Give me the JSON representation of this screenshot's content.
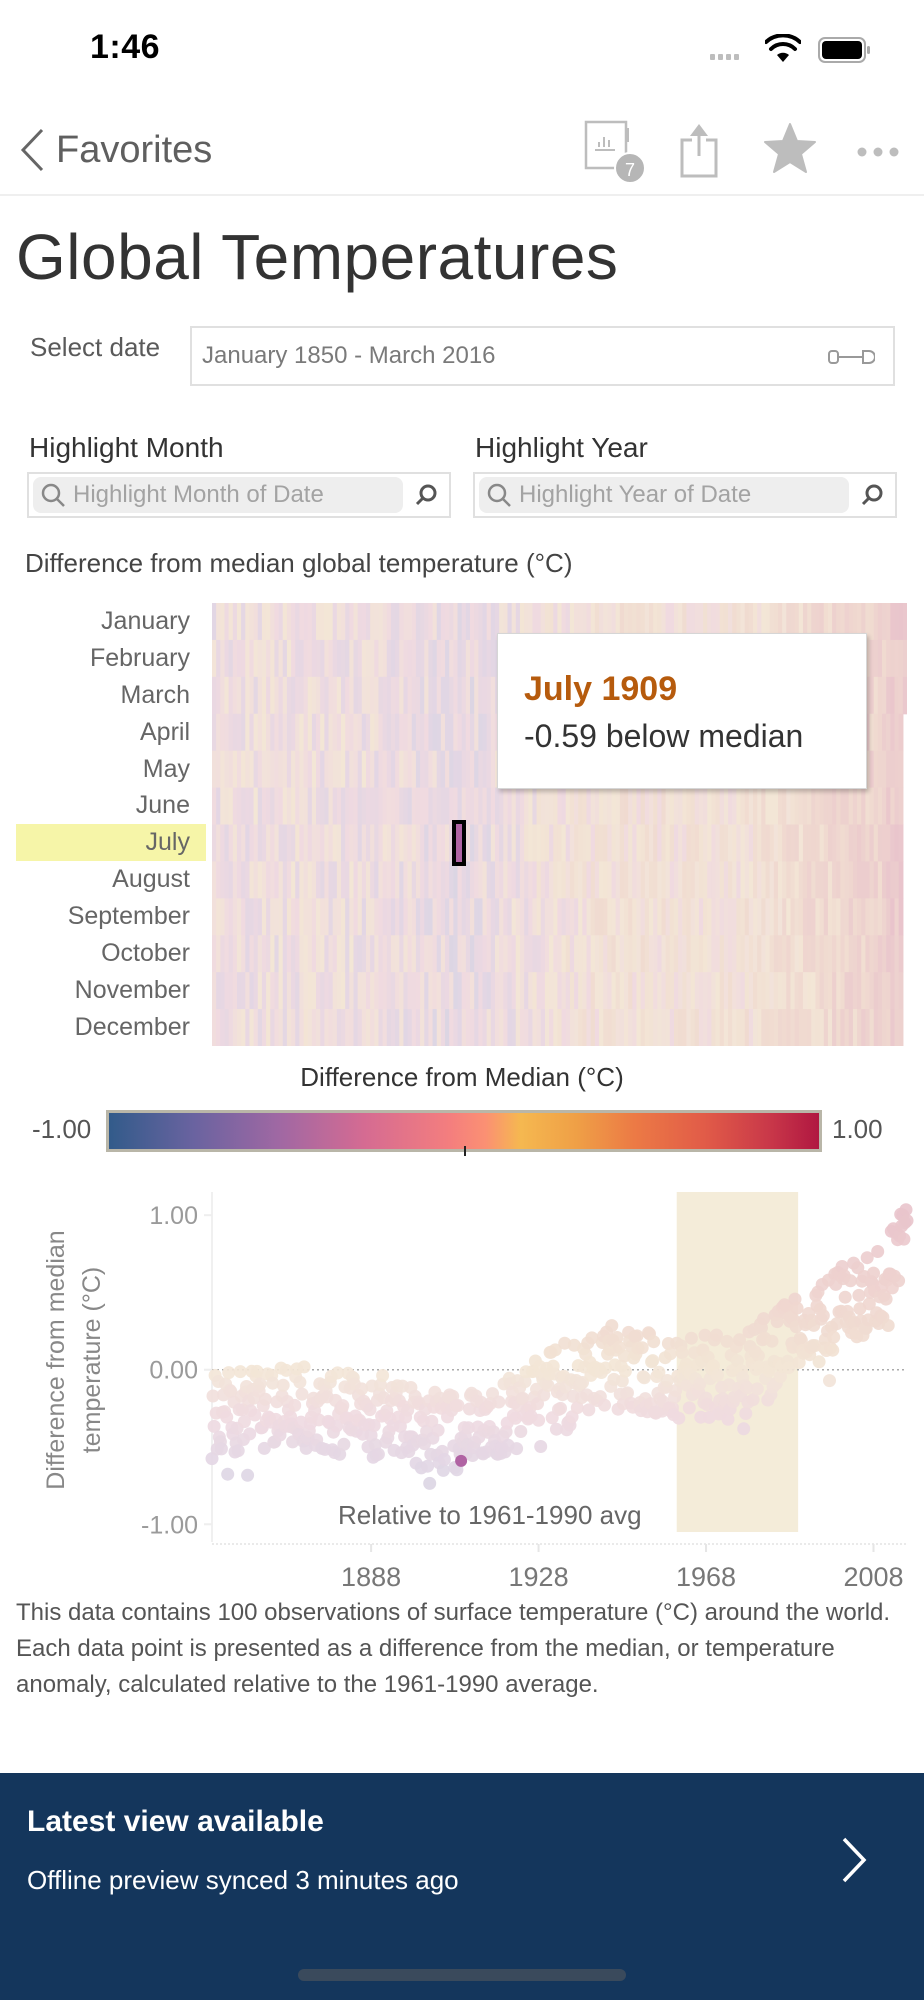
{
  "status_bar": {
    "time": "1:46"
  },
  "nav": {
    "back_label": "Favorites",
    "icons": [
      "custom-views-icon",
      "share-icon",
      "favorite-star-icon",
      "more-icon"
    ],
    "custom_views_count": "7"
  },
  "page": {
    "title": "Global Temperatures"
  },
  "filters": {
    "date_label": "Select date",
    "date_value": "January 1850 - March 2016",
    "highlight_month_label": "Highlight Month",
    "highlight_month_placeholder": "Highlight Month of Date",
    "highlight_year_label": "Highlight Year",
    "highlight_year_placeholder": "Highlight Year of Date"
  },
  "heatmap": {
    "caption": "Difference from median global temperature (°C)",
    "months": [
      "January",
      "February",
      "March",
      "April",
      "May",
      "June",
      "July",
      "August",
      "September",
      "October",
      "November",
      "December"
    ],
    "highlighted_month": "July",
    "tooltip": {
      "title": "July 1909",
      "value": "-0.59 below median"
    }
  },
  "legend": {
    "title": "Difference from Median (°C)",
    "min": "-1.00",
    "max": "1.00"
  },
  "colors": {
    "tooltip_title": "#b65b0d",
    "highlight_band": "#f6f5a8",
    "baseline_band": "#f4ecd9",
    "selected_mark": "#b063a3",
    "banner_bg": "#14365c"
  },
  "chart_data": [
    {
      "type": "heatmap",
      "title": "Difference from median global temperature (°C)",
      "x_range": [
        1850,
        2016
      ],
      "y_categories": [
        "January",
        "February",
        "March",
        "April",
        "May",
        "June",
        "July",
        "August",
        "September",
        "October",
        "November",
        "December"
      ],
      "color_range": [
        -1.0,
        1.0
      ],
      "selected": {
        "month": "July",
        "year": 1909,
        "value": -0.59
      }
    },
    {
      "type": "scatter",
      "title": "",
      "xlabel": "",
      "ylabel": "Difference from median temperature (°C)",
      "x_ticks": [
        "1888",
        "1928",
        "1968",
        "2008"
      ],
      "y_ticks": [
        "1.00",
        "0.00",
        "-1.00"
      ],
      "xlim": [
        1850,
        2016
      ],
      "ylim": [
        -1.05,
        1.15
      ],
      "reference_line": 0.0,
      "band": {
        "from": 1961,
        "to": 1990,
        "label": "Relative to 1961-1990 avg"
      },
      "trend": [
        {
          "year": 1850,
          "mean": -0.3
        },
        {
          "year": 1870,
          "mean": -0.25
        },
        {
          "year": 1890,
          "mean": -0.3
        },
        {
          "year": 1910,
          "mean": -0.45
        },
        {
          "year": 1930,
          "mean": -0.15
        },
        {
          "year": 1945,
          "mean": 0.02
        },
        {
          "year": 1960,
          "mean": -0.02
        },
        {
          "year": 1975,
          "mean": -0.05
        },
        {
          "year": 1990,
          "mean": 0.2
        },
        {
          "year": 2000,
          "mean": 0.4
        },
        {
          "year": 2010,
          "mean": 0.5
        },
        {
          "year": 2016,
          "mean": 0.9
        }
      ],
      "highlighted_point": {
        "year": 1909,
        "month": "July",
        "value": -0.59
      }
    }
  ],
  "description": "This data contains 100 observations of surface temperature (°C) around the world. Each data point is presented as a difference from the median, or temperature anomaly, calculated relative to the 1961-1990 average.",
  "banner": {
    "title": "Latest view available",
    "subtitle": "Offline preview synced 3 minutes ago"
  }
}
